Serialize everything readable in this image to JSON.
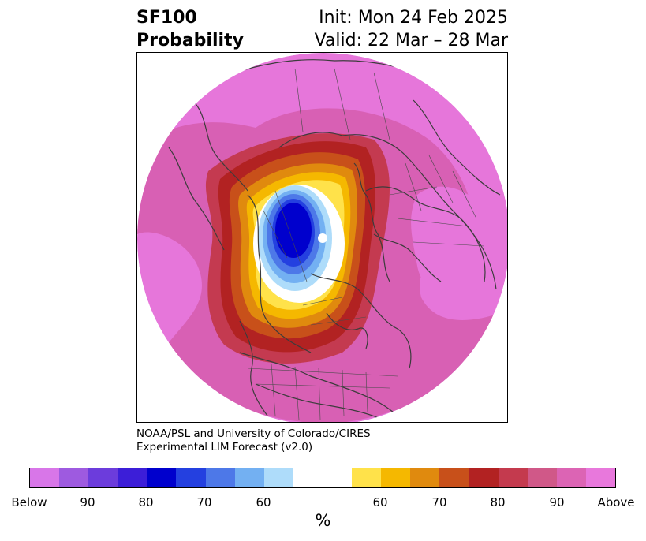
{
  "title": {
    "variable": "SF100",
    "product": "Probability",
    "init": "Init: Mon 24 Feb 2025",
    "valid": "Valid: 22 Mar – 28 Mar"
  },
  "credit": {
    "line1": "NOAA/PSL and University of Colorado/CIRES",
    "line2": "Experimental LIM Forecast (v2.0)"
  },
  "colorbar": {
    "unit": "%",
    "segments": [
      "#d876e8",
      "#9e5ae0",
      "#6c3cdc",
      "#3c1ed8",
      "#0000cd",
      "#2440e0",
      "#4d78e8",
      "#73b0f2",
      "#aedcfa",
      "#ffffff",
      "#ffe24a",
      "#f5b800",
      "#e08a0e",
      "#c8501a",
      "#b22222",
      "#c43a4e",
      "#d05888",
      "#dc64b4",
      "#e878dc"
    ],
    "labels": [
      "Below",
      "90",
      "80",
      "70",
      "60",
      "60",
      "70",
      "80",
      "90",
      "Above"
    ]
  },
  "colors": {
    "above_outer": "#e676da",
    "above_90": "#d860b4",
    "above_80": "#c43a50",
    "above_70": "#b22222",
    "above_60": "#c8501a",
    "yellow_1": "#e08a0e",
    "yellow_2": "#f5b800",
    "yellow_3": "#ffe24a",
    "below_60": "#aedcfa",
    "below_70": "#73b0f2",
    "below_80": "#4d78e8",
    "below_90": "#2440e0",
    "below_max": "#0000cd"
  }
}
